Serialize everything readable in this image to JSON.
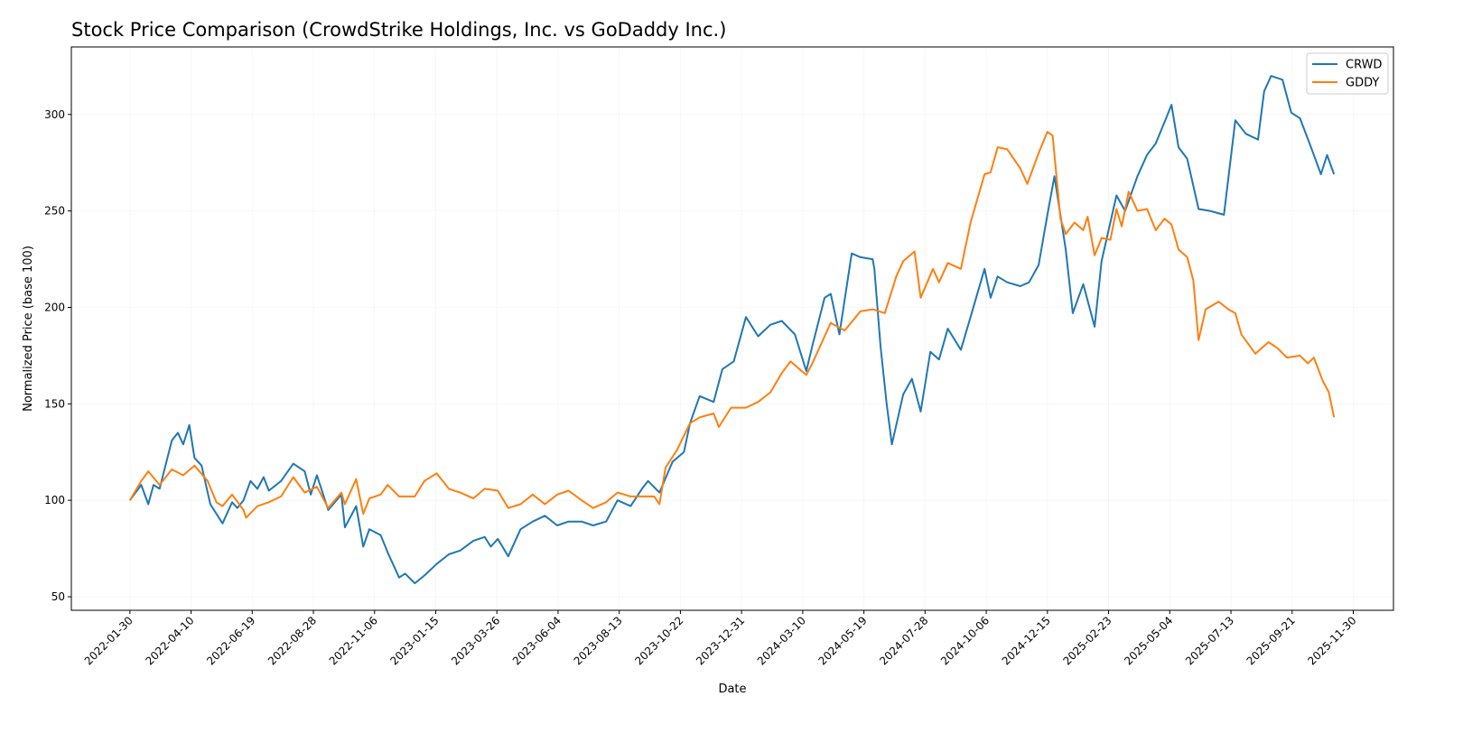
{
  "chart_data": {
    "type": "line",
    "title": "Stock Price Comparison (CrowdStrike Holdings, Inc. vs GoDaddy Inc.)",
    "xlabel": "Date",
    "ylabel": "Normalized Price (base 100)",
    "x_unit": "days since 2022-01-30",
    "xlim": [
      -67,
      1446
    ],
    "ylim": [
      43,
      335
    ],
    "grid": true,
    "legend_position": "top-right",
    "x_ticks": [
      {
        "value": 0,
        "label": "2022-01-30"
      },
      {
        "value": 70,
        "label": "2022-04-10"
      },
      {
        "value": 140,
        "label": "2022-06-19"
      },
      {
        "value": 210,
        "label": "2022-08-28"
      },
      {
        "value": 280,
        "label": "2022-11-06"
      },
      {
        "value": 350,
        "label": "2023-01-15"
      },
      {
        "value": 420,
        "label": "2023-03-26"
      },
      {
        "value": 490,
        "label": "2023-06-04"
      },
      {
        "value": 560,
        "label": "2023-08-13"
      },
      {
        "value": 630,
        "label": "2023-10-22"
      },
      {
        "value": 700,
        "label": "2023-12-31"
      },
      {
        "value": 770,
        "label": "2024-03-10"
      },
      {
        "value": 840,
        "label": "2024-05-19"
      },
      {
        "value": 910,
        "label": "2024-07-28"
      },
      {
        "value": 980,
        "label": "2024-10-06"
      },
      {
        "value": 1050,
        "label": "2024-12-15"
      },
      {
        "value": 1120,
        "label": "2025-02-23"
      },
      {
        "value": 1190,
        "label": "2025-05-04"
      },
      {
        "value": 1260,
        "label": "2025-07-13"
      },
      {
        "value": 1330,
        "label": "2025-09-21"
      },
      {
        "value": 1400,
        "label": "2025-11-30"
      }
    ],
    "y_ticks": [
      {
        "value": 50,
        "label": "50"
      },
      {
        "value": 100,
        "label": "100"
      },
      {
        "value": 150,
        "label": "150"
      },
      {
        "value": 200,
        "label": "200"
      },
      {
        "value": 250,
        "label": "250"
      },
      {
        "value": 300,
        "label": "300"
      }
    ],
    "series": [
      {
        "name": "CRWD",
        "color": "#1f77b4",
        "points": [
          [
            0,
            100
          ],
          [
            13,
            108
          ],
          [
            21,
            98
          ],
          [
            27,
            108
          ],
          [
            34,
            106
          ],
          [
            48,
            131
          ],
          [
            55,
            135
          ],
          [
            61,
            129
          ],
          [
            68,
            139
          ],
          [
            74,
            122
          ],
          [
            82,
            118
          ],
          [
            92,
            98
          ],
          [
            106,
            88
          ],
          [
            117,
            99
          ],
          [
            123,
            96
          ],
          [
            130,
            100
          ],
          [
            138,
            110
          ],
          [
            146,
            106
          ],
          [
            153,
            112
          ],
          [
            159,
            105
          ],
          [
            173,
            110
          ],
          [
            187,
            119
          ],
          [
            200,
            115
          ],
          [
            207,
            103
          ],
          [
            214,
            113
          ],
          [
            227,
            95
          ],
          [
            242,
            103
          ],
          [
            246,
            86
          ],
          [
            259,
            97
          ],
          [
            267,
            76
          ],
          [
            274,
            85
          ],
          [
            287,
            82
          ],
          [
            295,
            73
          ],
          [
            308,
            60
          ],
          [
            315,
            62
          ],
          [
            326,
            57
          ],
          [
            337,
            61
          ],
          [
            351,
            67
          ],
          [
            365,
            72
          ],
          [
            378,
            74
          ],
          [
            393,
            79
          ],
          [
            406,
            81
          ],
          [
            413,
            76
          ],
          [
            421,
            80
          ],
          [
            433,
            71
          ],
          [
            447,
            85
          ],
          [
            461,
            89
          ],
          [
            475,
            92
          ],
          [
            489,
            87
          ],
          [
            502,
            89
          ],
          [
            517,
            89
          ],
          [
            530,
            87
          ],
          [
            545,
            89
          ],
          [
            558,
            100
          ],
          [
            573,
            97
          ],
          [
            586,
            106
          ],
          [
            593,
            110
          ],
          [
            606,
            104
          ],
          [
            621,
            120
          ],
          [
            634,
            125
          ],
          [
            641,
            140
          ],
          [
            652,
            154
          ],
          [
            668,
            151
          ],
          [
            678,
            168
          ],
          [
            691,
            172
          ],
          [
            705,
            195
          ],
          [
            719,
            185
          ],
          [
            733,
            191
          ],
          [
            746,
            193
          ],
          [
            761,
            186
          ],
          [
            774,
            167
          ],
          [
            781,
            180
          ],
          [
            795,
            205
          ],
          [
            802,
            207
          ],
          [
            812,
            186
          ],
          [
            826,
            228
          ],
          [
            836,
            226
          ],
          [
            850,
            225
          ],
          [
            852,
            220
          ],
          [
            859,
            180
          ],
          [
            866,
            150
          ],
          [
            872,
            129
          ],
          [
            885,
            155
          ],
          [
            895,
            163
          ],
          [
            905,
            146
          ],
          [
            916,
            177
          ],
          [
            926,
            173
          ],
          [
            936,
            189
          ],
          [
            951,
            178
          ],
          [
            962,
            195
          ],
          [
            978,
            220
          ],
          [
            985,
            205
          ],
          [
            993,
            216
          ],
          [
            1004,
            213
          ],
          [
            1019,
            211
          ],
          [
            1029,
            213
          ],
          [
            1040,
            222
          ],
          [
            1050,
            248
          ],
          [
            1058,
            268
          ],
          [
            1071,
            230
          ],
          [
            1079,
            197
          ],
          [
            1091,
            212
          ],
          [
            1104,
            190
          ],
          [
            1112,
            224
          ],
          [
            1129,
            258
          ],
          [
            1139,
            250
          ],
          [
            1153,
            268
          ],
          [
            1164,
            279
          ],
          [
            1174,
            285
          ],
          [
            1184,
            296
          ],
          [
            1192,
            305
          ],
          [
            1200,
            283
          ],
          [
            1210,
            277
          ],
          [
            1223,
            251
          ],
          [
            1236,
            250
          ],
          [
            1252,
            248
          ],
          [
            1265,
            297
          ],
          [
            1277,
            290
          ],
          [
            1291,
            287
          ],
          [
            1298,
            312
          ],
          [
            1306,
            320
          ],
          [
            1319,
            318
          ],
          [
            1329,
            301
          ],
          [
            1339,
            298
          ],
          [
            1350,
            285
          ],
          [
            1363,
            269
          ],
          [
            1370,
            279
          ],
          [
            1378,
            269
          ]
        ]
      },
      {
        "name": "GDDY",
        "color": "#ff7f0e",
        "points": [
          [
            0,
            100
          ],
          [
            13,
            110
          ],
          [
            21,
            115
          ],
          [
            34,
            108
          ],
          [
            48,
            116
          ],
          [
            61,
            113
          ],
          [
            74,
            118
          ],
          [
            89,
            110
          ],
          [
            99,
            99
          ],
          [
            106,
            97
          ],
          [
            117,
            103
          ],
          [
            130,
            95
          ],
          [
            133,
            91
          ],
          [
            146,
            97
          ],
          [
            159,
            99
          ],
          [
            173,
            102
          ],
          [
            187,
            112
          ],
          [
            200,
            104
          ],
          [
            214,
            107
          ],
          [
            227,
            96
          ],
          [
            242,
            104
          ],
          [
            246,
            98
          ],
          [
            259,
            111
          ],
          [
            267,
            93
          ],
          [
            274,
            101
          ],
          [
            287,
            103
          ],
          [
            295,
            108
          ],
          [
            308,
            102
          ],
          [
            326,
            102
          ],
          [
            337,
            110
          ],
          [
            351,
            114
          ],
          [
            365,
            106
          ],
          [
            378,
            104
          ],
          [
            393,
            101
          ],
          [
            406,
            106
          ],
          [
            421,
            105
          ],
          [
            433,
            96
          ],
          [
            447,
            98
          ],
          [
            461,
            103
          ],
          [
            475,
            98
          ],
          [
            489,
            103
          ],
          [
            502,
            105
          ],
          [
            517,
            100
          ],
          [
            530,
            96
          ],
          [
            545,
            99
          ],
          [
            558,
            104
          ],
          [
            573,
            102
          ],
          [
            586,
            102
          ],
          [
            600,
            102
          ],
          [
            606,
            98
          ],
          [
            613,
            117
          ],
          [
            626,
            126
          ],
          [
            641,
            140
          ],
          [
            652,
            143
          ],
          [
            668,
            145
          ],
          [
            674,
            138
          ],
          [
            688,
            148
          ],
          [
            705,
            148
          ],
          [
            719,
            151
          ],
          [
            733,
            156
          ],
          [
            746,
            166
          ],
          [
            756,
            172
          ],
          [
            774,
            165
          ],
          [
            781,
            171
          ],
          [
            795,
            185
          ],
          [
            802,
            192
          ],
          [
            818,
            188
          ],
          [
            836,
            198
          ],
          [
            850,
            199
          ],
          [
            864,
            197
          ],
          [
            877,
            216
          ],
          [
            885,
            224
          ],
          [
            898,
            229
          ],
          [
            905,
            205
          ],
          [
            919,
            220
          ],
          [
            926,
            213
          ],
          [
            936,
            223
          ],
          [
            951,
            220
          ],
          [
            962,
            244
          ],
          [
            978,
            269
          ],
          [
            985,
            270
          ],
          [
            993,
            283
          ],
          [
            1004,
            282
          ],
          [
            1019,
            272
          ],
          [
            1027,
            264
          ],
          [
            1040,
            280
          ],
          [
            1050,
            291
          ],
          [
            1056,
            289
          ],
          [
            1065,
            246
          ],
          [
            1071,
            238
          ],
          [
            1081,
            244
          ],
          [
            1091,
            240
          ],
          [
            1096,
            247
          ],
          [
            1104,
            227
          ],
          [
            1112,
            236
          ],
          [
            1122,
            235
          ],
          [
            1129,
            251
          ],
          [
            1135,
            242
          ],
          [
            1143,
            260
          ],
          [
            1153,
            250
          ],
          [
            1164,
            251
          ],
          [
            1174,
            240
          ],
          [
            1184,
            246
          ],
          [
            1192,
            243
          ],
          [
            1200,
            230
          ],
          [
            1210,
            226
          ],
          [
            1217,
            214
          ],
          [
            1223,
            183
          ],
          [
            1231,
            199
          ],
          [
            1246,
            203
          ],
          [
            1257,
            199
          ],
          [
            1265,
            197
          ],
          [
            1272,
            186
          ],
          [
            1288,
            176
          ],
          [
            1303,
            182
          ],
          [
            1313,
            179
          ],
          [
            1324,
            174
          ],
          [
            1339,
            175
          ],
          [
            1348,
            171
          ],
          [
            1355,
            174
          ],
          [
            1365,
            162
          ],
          [
            1372,
            156
          ],
          [
            1378,
            143
          ]
        ]
      }
    ]
  }
}
